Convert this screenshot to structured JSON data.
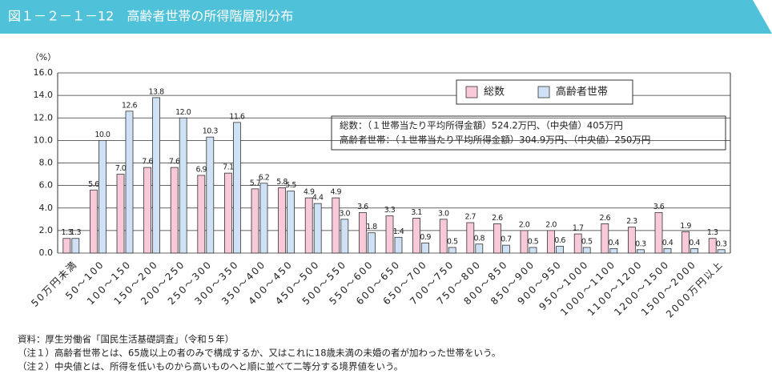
{
  "chart_data": {
    "type": "bar",
    "title": "図１－２－１－12　高齢者世帯の所得階層別分布",
    "y_unit": "（%）",
    "categories": [
      "50万円未満",
      "50～100",
      "100～150",
      "150～200",
      "200～250",
      "250～300",
      "300～350",
      "350～400",
      "400～450",
      "450～500",
      "500～550",
      "550～600",
      "600～650",
      "650～700",
      "700～750",
      "750～800",
      "800～850",
      "850～900",
      "900～950",
      "950～1000",
      "1000～1100",
      "1100～1200",
      "1200～1500",
      "1500～2000",
      "2000万円以上"
    ],
    "series": [
      {
        "name": "総数",
        "color": "#f7c9d9",
        "values": [
          1.3,
          5.6,
          7.0,
          7.6,
          7.6,
          6.9,
          7.1,
          5.7,
          5.8,
          4.9,
          4.9,
          3.6,
          3.3,
          3.1,
          3.0,
          2.7,
          2.6,
          2.0,
          2.0,
          1.7,
          2.6,
          2.3,
          3.6,
          1.9,
          1.3
        ],
        "value_labels": [
          "1.3",
          "5.6",
          "7.0",
          "7.6",
          "7.6",
          "6.9",
          "7.1",
          "5.7",
          "5.8",
          "4.9",
          "4.9",
          "3.6",
          "3.3",
          "3.1",
          "3.0",
          "2.7",
          "2.6",
          "2.0",
          "2.0",
          "1.7",
          "2.6",
          "2.3",
          "3.6",
          "1.9",
          "1.3"
        ]
      },
      {
        "name": "高齢者世帯",
        "color": "#cfe2f5",
        "values": [
          1.3,
          10.0,
          12.6,
          13.8,
          12.0,
          10.3,
          11.6,
          6.2,
          5.5,
          4.4,
          3.0,
          1.8,
          1.4,
          0.9,
          0.5,
          0.8,
          0.7,
          0.5,
          0.6,
          0.5,
          0.4,
          0.3,
          0.4,
          0.4,
          0.3
        ],
        "value_labels": [
          "1.3",
          "10.0",
          "12.6",
          "13.8",
          "12.0",
          "10.3",
          "11.6",
          "6.2",
          "5.5",
          "4.4",
          "3.0",
          "1.8",
          "1.4",
          "0.9",
          "0.5",
          "0.8",
          "0.7",
          "0.5",
          "0.6",
          "0.5",
          "0.4",
          "0.3",
          "0.4",
          "0.4",
          "0.3"
        ]
      }
    ],
    "ylim": [
      0,
      16
    ],
    "yticks": [
      {
        "value": 0,
        "label": "0.0"
      },
      {
        "value": 2,
        "label": "2.0"
      },
      {
        "value": 4,
        "label": "4.0"
      },
      {
        "value": 6,
        "label": "6.0"
      },
      {
        "value": 8,
        "label": "8.0"
      },
      {
        "value": 10,
        "label": "10.0"
      },
      {
        "value": 12,
        "label": "12.0"
      },
      {
        "value": 14,
        "label": "14.0"
      },
      {
        "value": 16,
        "label": "16.0"
      }
    ],
    "grid": true,
    "legend": "upper right",
    "annotations": [
      "総数：（１世帯当たり平均所得金額）524.2万円、（中央値）405万円",
      "高齢者世帯：（１世帯当たり平均所得金額）304.9万円、（中央値）250万円"
    ],
    "notes": [
      "資料：厚生労働省「国民生活基礎調査」（令和５年）",
      "（注１）高齢者世帯とは、65歳以上の者のみで構成するか、又はこれに18歳未満の未婚の者が加わった世帯をいう。",
      "（注２）中央値とは、所得を低いものから高いものへと順に並べて二等分する境界値をいう。"
    ]
  }
}
